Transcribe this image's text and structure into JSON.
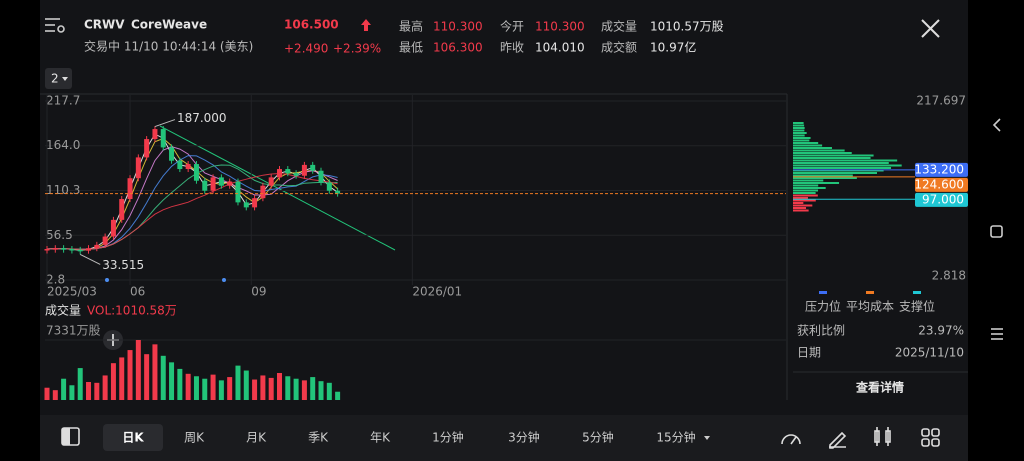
{
  "header": {
    "symbol": "CRWV",
    "name": "CoreWeave",
    "status": "交易中 11/10 10:44:14 (美东)",
    "price": "106.500",
    "change": "+2.490",
    "change_pct": "+2.39%"
  },
  "stats": [
    {
      "label": "最高",
      "value": "110.300",
      "color": "#f23a4b"
    },
    {
      "label": "最低",
      "value": "106.300",
      "color": "#f23a4b"
    },
    {
      "label": "今开",
      "value": "110.300",
      "color": "#f23a4b"
    },
    {
      "label": "昨收",
      "value": "104.010",
      "color": "#e6e6e6"
    },
    {
      "label": "成交量",
      "value": "1010.57万股",
      "color": "#e6e6e6"
    },
    {
      "label": "成交额",
      "value": "10.97亿",
      "color": "#e6e6e6"
    }
  ],
  "chart_data": [
    {
      "type": "candle",
      "period_selector": "2",
      "x": [
        0,
        1,
        2,
        3,
        4,
        5,
        6,
        7,
        8,
        9,
        10,
        11,
        12,
        13,
        14,
        15,
        16,
        17,
        18,
        19,
        20,
        21,
        22,
        23,
        24,
        25,
        26,
        27,
        28,
        29,
        30,
        31,
        32,
        33,
        34,
        35
      ],
      "values": [
        40,
        41,
        40,
        39,
        38,
        41,
        45,
        55,
        75,
        100,
        125,
        150,
        172,
        184,
        162,
        146,
        136,
        142,
        122,
        110,
        126,
        116,
        121,
        96,
        90,
        101,
        116,
        126,
        136,
        131,
        128,
        141,
        134,
        120,
        110,
        106.5
      ],
      "up_color": "#f23a4b",
      "down_color": "#22c47a",
      "xlim": [
        0,
        89
      ],
      "xticks": [
        {
          "value": 0,
          "label": "2025/03"
        },
        {
          "value": 10,
          "label": "06"
        },
        {
          "value": 24.6,
          "label": "09"
        },
        {
          "value": 44,
          "label": "2026/01"
        }
      ],
      "ylim": [
        2.8,
        217.7
      ],
      "yticks": [
        217.7,
        {
          "value": 164,
          "label": "164.0"
        },
        110.3,
        56.5,
        2.8
      ],
      "grid": true,
      "annotations": [
        {
          "x": 13,
          "y": 187,
          "label": "187.000"
        },
        {
          "x": 4,
          "y": 33.515,
          "label": "33.515"
        }
      ]
    },
    {
      "type": "bar",
      "title": "成交量",
      "subtitle": "VOL:1010.58万",
      "values": [
        1500,
        1200,
        2600,
        1800,
        3900,
        2200,
        2100,
        3000,
        4500,
        5200,
        6100,
        7331,
        5600,
        6800,
        5400,
        4600,
        3800,
        3200,
        2900,
        2600,
        3100,
        2400,
        2800,
        4200,
        3600,
        2500,
        3000,
        2700,
        3300,
        2900,
        2600,
        2400,
        2800,
        2300,
        2100,
        1010.58
      ],
      "ylim": [
        0,
        7331
      ],
      "yticks": [
        {
          "value": 7331,
          "label": "7331万股"
        }
      ]
    }
  ],
  "chips": {
    "ylim": [
      2.818,
      217.697
    ],
    "yticks": [
      217.697,
      2.818
    ],
    "levels": [
      {
        "name": "压力位",
        "value": 133.2,
        "label": "133.200",
        "color": "#3d6ef5"
      },
      {
        "name": "平均成本",
        "value": 124.6,
        "label": "124.600",
        "color": "#f07a22"
      },
      {
        "name": "支撑位",
        "value": 97,
        "label": "97.000",
        "color": "#1fc7d4"
      }
    ],
    "profit_ratio_label": "获利比例",
    "profit_ratio": "23.97%",
    "date_label": "日期",
    "date": "2025/11/10",
    "button": "查看详情"
  },
  "toolbar": {
    "periods": [
      "日K",
      "周K",
      "月K",
      "季K",
      "年K",
      "1分钟",
      "3分钟",
      "5分钟",
      "15分钟"
    ],
    "selected": 0
  }
}
